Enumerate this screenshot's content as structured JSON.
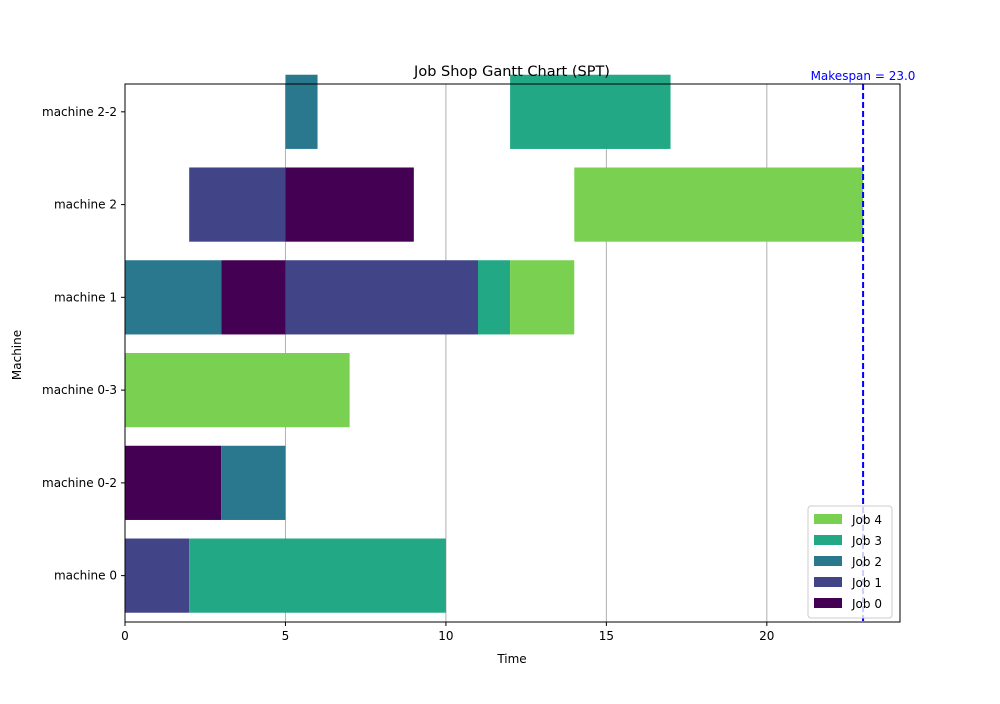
{
  "chart_data": {
    "type": "gantt",
    "title": "Job Shop Gantt Chart (SPT)",
    "xlabel": "Time",
    "ylabel": "Machine",
    "xlim": [
      0,
      24.15
    ],
    "xticks": [
      0,
      5,
      10,
      15,
      20
    ],
    "x_grid": true,
    "machines": [
      "machine 0",
      "machine 0-2",
      "machine 0-3",
      "machine 1",
      "machine 2",
      "machine 2-2"
    ],
    "jobs": [
      {
        "name": "Job 0",
        "color": "#440154"
      },
      {
        "name": "Job 1",
        "color": "#414487"
      },
      {
        "name": "Job 2",
        "color": "#2a788e"
      },
      {
        "name": "Job 3",
        "color": "#22a884"
      },
      {
        "name": "Job 4",
        "color": "#7ad151"
      }
    ],
    "tasks": [
      {
        "machine": "machine 0",
        "job": "Job 1",
        "start": 0,
        "end": 2
      },
      {
        "machine": "machine 0",
        "job": "Job 3",
        "start": 2,
        "end": 10
      },
      {
        "machine": "machine 0-2",
        "job": "Job 0",
        "start": 0,
        "end": 3
      },
      {
        "machine": "machine 0-2",
        "job": "Job 2",
        "start": 3,
        "end": 5
      },
      {
        "machine": "machine 0-3",
        "job": "Job 4",
        "start": 0,
        "end": 7
      },
      {
        "machine": "machine 1",
        "job": "Job 2",
        "start": 0,
        "end": 3
      },
      {
        "machine": "machine 1",
        "job": "Job 0",
        "start": 3,
        "end": 5
      },
      {
        "machine": "machine 1",
        "job": "Job 1",
        "start": 5,
        "end": 11
      },
      {
        "machine": "machine 1",
        "job": "Job 3",
        "start": 11,
        "end": 12
      },
      {
        "machine": "machine 1",
        "job": "Job 4",
        "start": 12,
        "end": 14
      },
      {
        "machine": "machine 2",
        "job": "Job 1",
        "start": 2,
        "end": 5
      },
      {
        "machine": "machine 2",
        "job": "Job 0",
        "start": 5,
        "end": 9
      },
      {
        "machine": "machine 2",
        "job": "Job 4",
        "start": 14,
        "end": 23
      },
      {
        "machine": "machine 2-2",
        "job": "Job 2",
        "start": 5,
        "end": 6
      },
      {
        "machine": "machine 2-2",
        "job": "Job 3",
        "start": 12,
        "end": 17
      }
    ],
    "makespan": {
      "value": 23.0,
      "label": "Makespan = 23.0",
      "color": "#0000ff"
    },
    "legend": {
      "placement": "lower-right",
      "entries": [
        "Job 4",
        "Job 3",
        "Job 2",
        "Job 1",
        "Job 0"
      ]
    }
  }
}
